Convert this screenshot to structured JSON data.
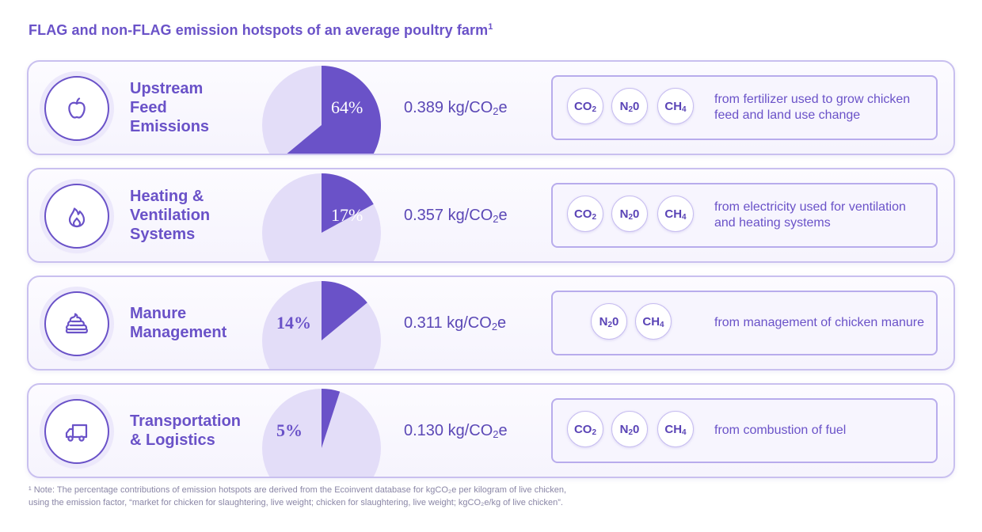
{
  "title": "FLAG and non-FLAG emission hotspots of an average poultry farm",
  "title_note_mark": "1",
  "colors": {
    "accent": "#6a52c8",
    "slice": "#6a52c8",
    "pie_bg": "#e3ddf8",
    "border": "#c9c0ef"
  },
  "chart_data": {
    "type": "pie",
    "title": "FLAG and non-FLAG emission hotspots of an average poultry farm",
    "categories": [
      "Upstream Feed Emissions",
      "Heating & Ventilation Systems",
      "Manure Management",
      "Transportation & Logistics"
    ],
    "values": [
      64,
      17,
      14,
      5
    ],
    "value_labels": [
      "64%",
      "17%",
      "14%",
      "5%"
    ],
    "emissions": [
      "0.389 kg/CO₂e",
      "0.357 kg/CO₂e",
      "0.311 kg/CO₂e",
      "0.130 kg/CO₂e"
    ]
  },
  "rows": [
    {
      "label": "Upstream\nFeed\nEmissions",
      "icon": "apple-icon",
      "percent": 64,
      "percent_label": "64%",
      "amount_main": "0.389 kg/CO",
      "amount_sub": "2",
      "amount_tail": "e",
      "gases": [
        {
          "main": "CO",
          "sub": "2"
        },
        {
          "main": "N",
          "sub": "2",
          "tail": "0"
        },
        {
          "main": "CH",
          "sub": "4"
        }
      ],
      "description": "from fertilizer used to grow chicken feed and land use change"
    },
    {
      "label": "Heating &\nVentilation\nSystems",
      "icon": "flame-icon",
      "percent": 17,
      "percent_label": "17%",
      "amount_main": "0.357 kg/CO",
      "amount_sub": "2",
      "amount_tail": "e",
      "gases": [
        {
          "main": "CO",
          "sub": "2"
        },
        {
          "main": "N",
          "sub": "2",
          "tail": "0"
        },
        {
          "main": "CH",
          "sub": "4"
        }
      ],
      "description": "from electricity used for ventilation and heating systems"
    },
    {
      "label": "Manure\nManagement",
      "icon": "manure-icon",
      "percent": 14,
      "percent_label": "14%",
      "amount_main": "0.311 kg/CO",
      "amount_sub": "2",
      "amount_tail": "e",
      "gases": [
        {
          "main": "N",
          "sub": "2",
          "tail": "0"
        },
        {
          "main": "CH",
          "sub": "4"
        }
      ],
      "description": "from management of chicken manure"
    },
    {
      "label": "Transportation\n& Logistics",
      "icon": "truck-icon",
      "percent": 5,
      "percent_label": "5%",
      "amount_main": "0.130 kg/CO",
      "amount_sub": "2",
      "amount_tail": "e",
      "gases": [
        {
          "main": "CO",
          "sub": "2"
        },
        {
          "main": "N",
          "sub": "2",
          "tail": "0"
        },
        {
          "main": "CH",
          "sub": "4"
        }
      ],
      "description": "from combustion of fuel"
    }
  ],
  "footnote_line1": "¹ Note: The percentage contributions of emission hotspots are derived from the Ecoinvent database for kgCO₂e per kilogram of live chicken,",
  "footnote_line2": "using the emission factor, “market for chicken for slaughtering, live weight; chicken for slaughtering, live weight; kgCO₂e/kg of live chicken”."
}
